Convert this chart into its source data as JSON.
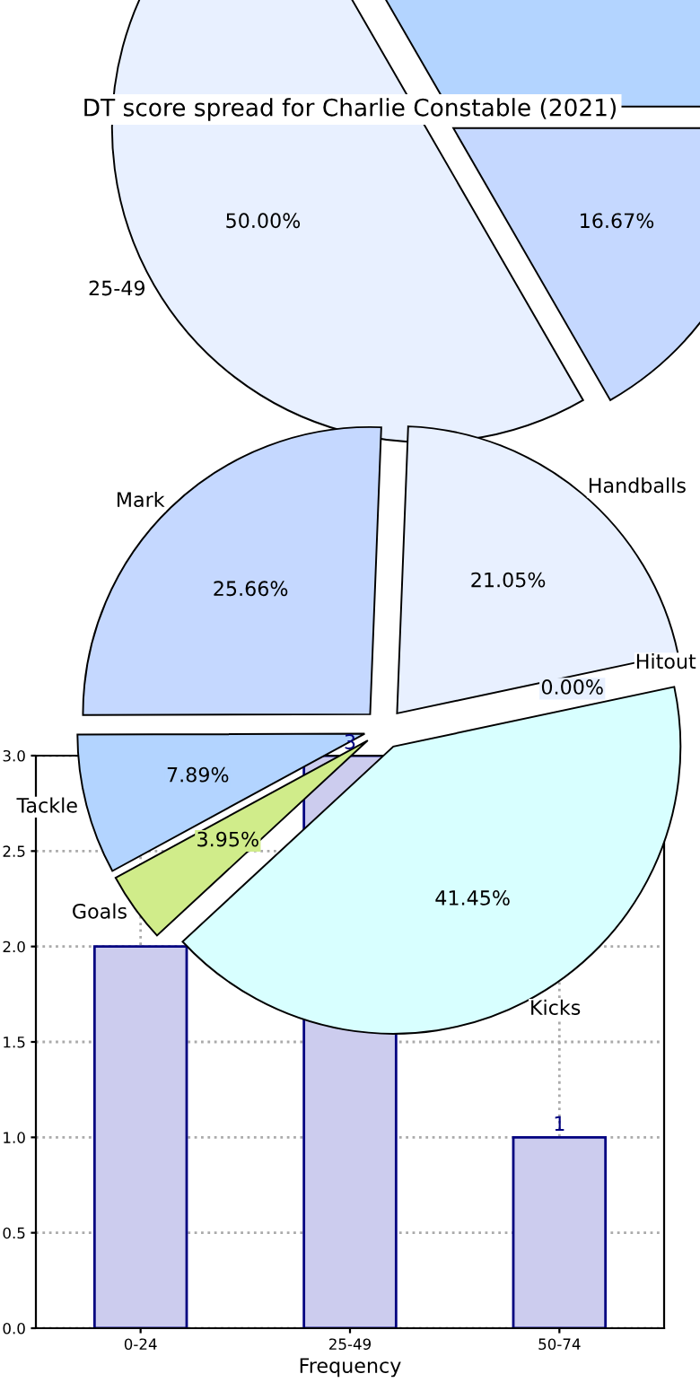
{
  "chart_data": [
    {
      "type": "bar",
      "xlabel": "Frequency",
      "categories": [
        "0-24",
        "25-49",
        "50-74"
      ],
      "values": [
        2,
        3,
        1
      ],
      "color": "#ccccee",
      "value_labels": [
        null,
        "3",
        "1"
      ],
      "ylim": [
        0,
        3
      ],
      "yticks": [
        {
          "value": 0,
          "label": "0.0"
        },
        0.5,
        {
          "value": 1,
          "label": "1.0"
        },
        1.5,
        {
          "value": 2,
          "label": "2.0"
        },
        2.5,
        {
          "value": 3,
          "label": "3.0"
        }
      ],
      "grid": true,
      "legend": false
    },
    {
      "type": "pie",
      "title": "DT score spread for Charlie Constable (2021)",
      "categories": [
        null,
        "25-49",
        null
      ],
      "values": [
        33.33,
        50.0,
        16.67
      ],
      "colors": [
        "#b3d4ff",
        "#e8f0ff",
        "#c5d8ff"
      ],
      "value_labels": [
        null,
        "50.00%",
        "16.67%"
      ],
      "legend": false
    },
    {
      "type": "pie",
      "categories": [
        "Hitout",
        "Handballs",
        "Mark",
        "Tackle",
        "Goals",
        "Kicks"
      ],
      "values": [
        0.0,
        21.05,
        25.66,
        7.89,
        3.95,
        41.45
      ],
      "colors": [
        "#e8f0ff",
        "#e8f0ff",
        "#c5d8ff",
        "#b3d4ff",
        "#d0ec8a",
        "#d8ffff"
      ],
      "value_labels": [
        "0.00%",
        "21.05%",
        "25.66%",
        "7.89%",
        "3.95%",
        "41.45%"
      ],
      "legend": false
    }
  ]
}
